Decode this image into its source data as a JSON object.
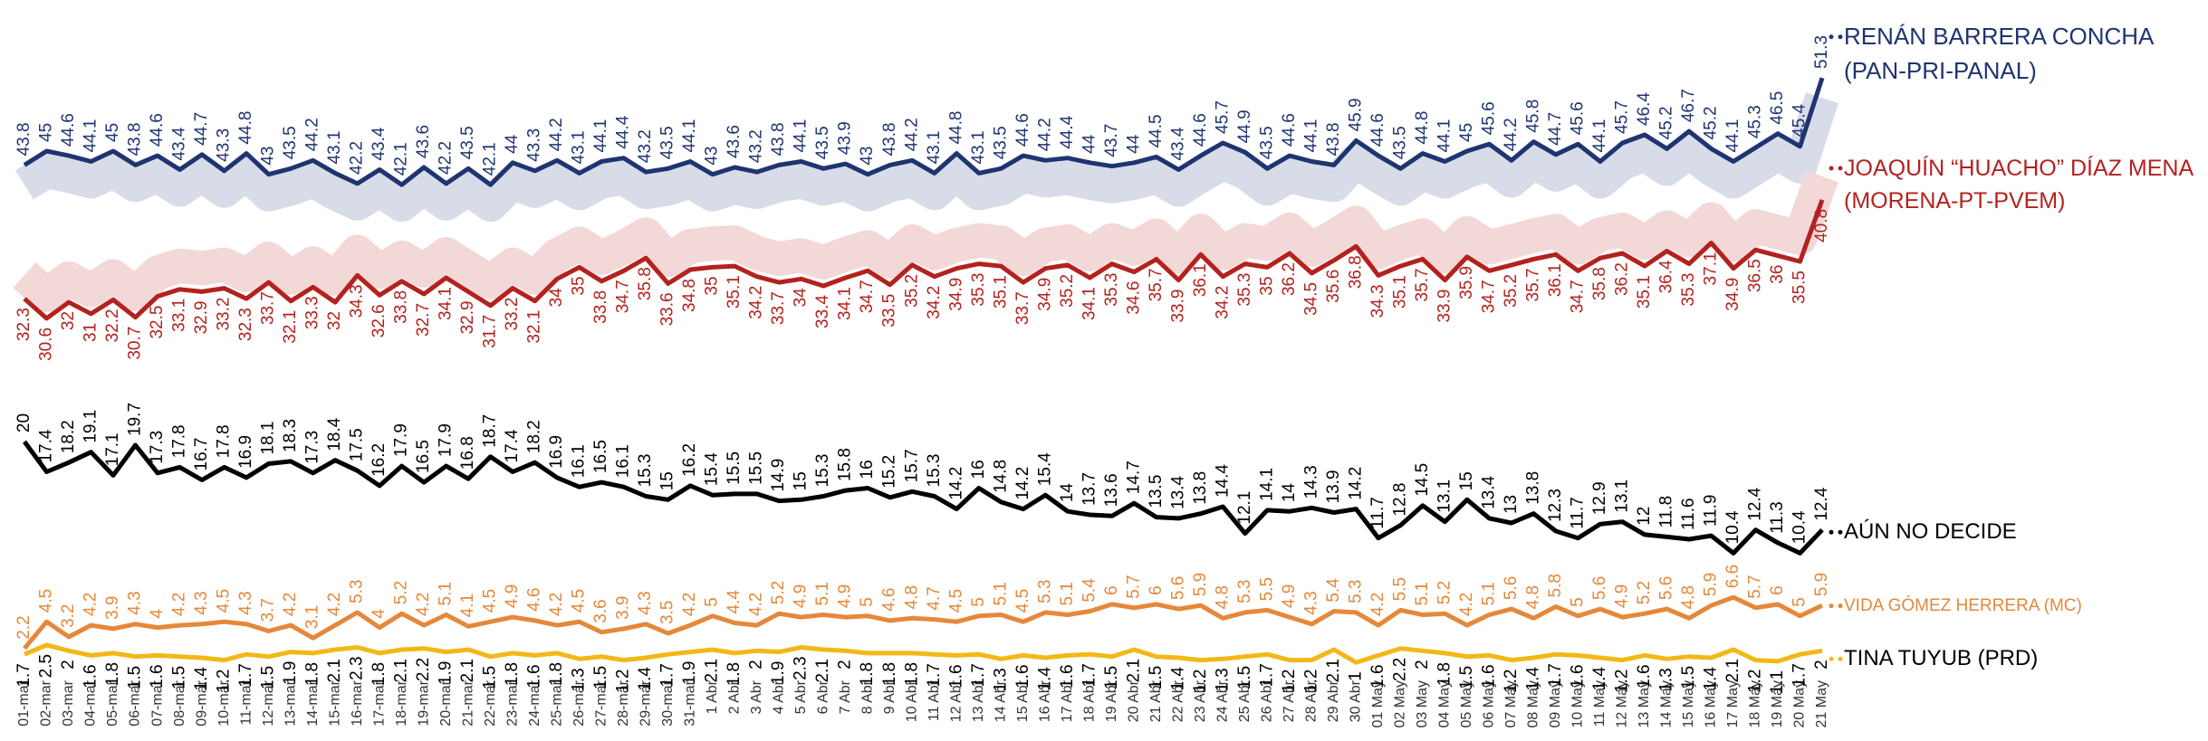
{
  "chart_data": {
    "type": "line",
    "categories": [
      "01-mar",
      "02-mar",
      "03-mar",
      "04-mar",
      "05-mar",
      "06-mar",
      "07-mar",
      "08-mar",
      "09-mar",
      "10-mar",
      "11-mar",
      "12-mar",
      "13-mar",
      "14-mar",
      "15-mar",
      "16-mar",
      "17-mar",
      "18-mar",
      "19-mar",
      "20-mar",
      "21-mar",
      "22-mar",
      "23-mar",
      "24-mar",
      "25-mar",
      "26-mar",
      "27-mar",
      "28-mar",
      "29-mar",
      "30-mar",
      "31-mar",
      "1 Abr",
      "2 Abr",
      "3 Abr",
      "4 Abr",
      "5 Abr",
      "6 Abr",
      "7 Abr",
      "8 Abr",
      "9 Abr",
      "10 Abr",
      "11 Abr",
      "12 Abr",
      "13 Abr",
      "14 Abr",
      "15 Abr",
      "16 Abr",
      "17 Abr",
      "18 Abr",
      "19 Abr",
      "20 Abr",
      "21 Abr",
      "22 Abr",
      "23 Abr",
      "24 Abr",
      "25 Abr",
      "26 Abr",
      "27 Abr",
      "28 Abr",
      "29 Abr",
      "30 Abr",
      "01 May",
      "02 May",
      "03 May",
      "04 May",
      "05 May",
      "06 May",
      "07 May",
      "08 May",
      "09 May",
      "10 May",
      "11 May",
      "12 May",
      "13 May",
      "14 May",
      "15 May",
      "16 May",
      "17 May",
      "18 May",
      "19 May",
      "20 May",
      "21 May"
    ],
    "ylim": [
      0,
      58
    ],
    "series": [
      {
        "name": "RENÁN BARRERA CONCHA (PAN-PRI-PANAL)",
        "color": "#1f3470",
        "label_color": "#1f3470",
        "band_color": "#d7dce8",
        "values": [
          43.8,
          45.0,
          44.6,
          44.1,
          45.0,
          43.8,
          44.6,
          43.4,
          44.7,
          43.3,
          44.8,
          43.0,
          43.5,
          44.2,
          43.1,
          42.2,
          43.4,
          42.1,
          43.6,
          42.2,
          43.5,
          42.1,
          44.0,
          43.3,
          44.2,
          43.1,
          44.1,
          44.4,
          43.2,
          43.5,
          44.1,
          43.0,
          43.6,
          43.2,
          43.8,
          44.1,
          43.5,
          43.9,
          43.0,
          43.8,
          44.2,
          43.1,
          44.8,
          43.1,
          43.5,
          44.6,
          44.2,
          44.4,
          44.0,
          43.7,
          44.0,
          44.5,
          43.4,
          44.6,
          45.7,
          44.9,
          43.5,
          44.6,
          44.1,
          43.8,
          45.9,
          44.6,
          43.5,
          44.8,
          44.1,
          45.0,
          45.6,
          44.2,
          45.8,
          44.7,
          45.6,
          44.1,
          45.7,
          46.4,
          45.2,
          46.7,
          45.2,
          44.1,
          45.3,
          46.5,
          45.4,
          51.3
        ]
      },
      {
        "name": "JOAQUÍN “HUACHO” DÍAZ MENA (MORENA-PT-PVEM)",
        "color": "#b3221e",
        "label_color": "#b3221e",
        "band_color": "#f3d8d8",
        "values": [
          32.3,
          30.6,
          32.0,
          31.0,
          32.2,
          30.7,
          32.5,
          33.1,
          32.9,
          33.2,
          32.3,
          33.7,
          32.1,
          33.3,
          32.0,
          34.3,
          32.6,
          33.8,
          32.7,
          34.1,
          32.9,
          31.7,
          33.2,
          32.1,
          34.0,
          35.0,
          33.8,
          34.7,
          35.8,
          33.6,
          34.8,
          35.0,
          35.1,
          34.2,
          33.7,
          34.0,
          33.4,
          34.1,
          34.7,
          33.5,
          35.2,
          34.2,
          34.9,
          35.3,
          35.1,
          33.7,
          34.9,
          35.2,
          34.1,
          35.3,
          34.6,
          35.7,
          33.9,
          36.1,
          34.2,
          35.3,
          35.0,
          36.2,
          34.5,
          35.6,
          36.8,
          34.3,
          35.1,
          35.7,
          33.9,
          35.9,
          34.7,
          35.2,
          35.7,
          36.1,
          34.7,
          35.8,
          36.2,
          35.1,
          36.4,
          35.3,
          37.1,
          34.9,
          36.5,
          36.0,
          35.5,
          40.8
        ]
      },
      {
        "name": "AÚN NO DECIDE",
        "color": "#000000",
        "label_color": "#000000",
        "values": [
          20.0,
          17.4,
          18.2,
          19.1,
          17.1,
          19.7,
          17.3,
          17.8,
          16.7,
          17.8,
          16.9,
          18.1,
          18.3,
          17.3,
          18.4,
          17.5,
          16.2,
          17.9,
          16.5,
          17.9,
          16.8,
          18.7,
          17.4,
          18.2,
          16.9,
          16.1,
          16.5,
          16.1,
          15.3,
          15.0,
          16.2,
          15.4,
          15.5,
          15.5,
          14.9,
          15.0,
          15.3,
          15.8,
          16.0,
          15.2,
          15.7,
          15.3,
          14.2,
          16.0,
          14.8,
          14.2,
          15.4,
          14.0,
          13.7,
          13.6,
          14.7,
          13.5,
          13.4,
          13.8,
          14.4,
          12.1,
          14.1,
          14.0,
          14.3,
          13.9,
          14.2,
          11.7,
          12.8,
          14.5,
          13.1,
          15.0,
          13.4,
          13.0,
          13.8,
          12.3,
          11.7,
          12.9,
          13.1,
          12.0,
          11.8,
          11.6,
          11.9,
          10.4,
          12.4,
          11.3,
          10.4,
          12.4
        ]
      },
      {
        "name": "VIDA GÓMEZ HERRERA (MC)",
        "color": "#e5883a",
        "label_color": "#e5883a",
        "values": [
          2.2,
          4.5,
          3.2,
          4.2,
          3.9,
          4.3,
          4.0,
          4.2,
          4.3,
          4.5,
          4.3,
          3.7,
          4.2,
          3.1,
          4.2,
          5.3,
          4.0,
          5.2,
          4.2,
          5.1,
          4.1,
          4.5,
          4.9,
          4.6,
          4.2,
          4.5,
          3.6,
          3.9,
          4.3,
          3.5,
          4.2,
          5.0,
          4.4,
          4.2,
          5.2,
          4.9,
          5.1,
          4.9,
          5.0,
          4.6,
          4.8,
          4.7,
          4.5,
          5.0,
          5.1,
          4.5,
          5.3,
          5.1,
          5.4,
          6.0,
          5.7,
          6.0,
          5.6,
          5.9,
          4.8,
          5.3,
          5.5,
          4.9,
          4.3,
          5.4,
          5.3,
          4.2,
          5.5,
          5.1,
          5.2,
          4.2,
          5.1,
          5.6,
          4.8,
          5.8,
          5.0,
          5.6,
          4.9,
          5.2,
          5.6,
          4.8,
          5.9,
          6.6,
          5.7,
          6.0,
          5.0,
          5.9
        ]
      },
      {
        "name": "TINA TUYUB (PRD)",
        "color": "#f2b817",
        "label_color": "#000000",
        "values": [
          1.7,
          2.5,
          2.0,
          1.6,
          1.8,
          1.5,
          1.6,
          1.5,
          1.4,
          1.2,
          1.7,
          1.5,
          1.9,
          1.8,
          2.1,
          2.3,
          1.8,
          2.1,
          2.2,
          1.9,
          2.1,
          1.5,
          1.8,
          1.6,
          1.8,
          1.3,
          1.5,
          1.2,
          1.4,
          1.7,
          1.9,
          2.1,
          1.8,
          2.0,
          1.9,
          2.3,
          2.1,
          2.0,
          1.8,
          1.8,
          1.8,
          1.7,
          1.6,
          1.7,
          1.3,
          1.6,
          1.4,
          1.6,
          1.7,
          1.5,
          2.1,
          1.5,
          1.4,
          1.2,
          1.3,
          1.5,
          1.7,
          1.2,
          1.2,
          2.1,
          1.0,
          1.6,
          2.2,
          2.0,
          1.8,
          1.5,
          1.6,
          1.2,
          1.4,
          1.7,
          1.6,
          1.4,
          1.2,
          1.6,
          1.3,
          1.5,
          1.4,
          2.1,
          1.2,
          1.1,
          1.7,
          2.0
        ]
      }
    ]
  }
}
